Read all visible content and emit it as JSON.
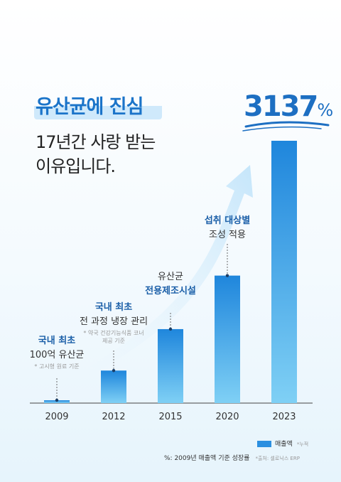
{
  "headline": "유산균에 진심",
  "subtitle_line1": "17년간 사랑 받는",
  "subtitle_line2": "이유입니다.",
  "growth": {
    "value": "3137",
    "unit": "%"
  },
  "chart_data": {
    "type": "bar",
    "categories": [
      "2009",
      "2012",
      "2015",
      "2020",
      "2023"
    ],
    "series": [
      {
        "name": "매출액",
        "values": [
          1,
          12.4,
          28.2,
          48.6,
          100
        ]
      }
    ],
    "ylim": [
      0,
      100
    ],
    "grid": false,
    "legend_position": "bottom-right"
  },
  "annotations": [
    {
      "bold": "국내 최초",
      "normal": "100억 유산균",
      "small1": "* 고시형 원료 기준",
      "small2": ""
    },
    {
      "bold": "국내 최초",
      "normal": "전 과정 냉장 관리",
      "small1": "* 약국 건강기능식품 코너",
      "small2": "제공 기준"
    },
    {
      "normal": "유산균",
      "bold": "전용제조시설"
    },
    {
      "bold": "섭취 대상별",
      "normal": "조성 적용"
    }
  ],
  "legend": {
    "label": "매출액",
    "note": "*누적"
  },
  "footnote": {
    "text": "%: 2009년 매출액 기준 성장률",
    "source": "*출처: 셀로닉스 ERP"
  },
  "colors": {
    "accent": "#1b74c9",
    "bar_top": "#1f86dc",
    "bar_bottom": "#7fd0f5",
    "arrow": "#cde9fb"
  }
}
